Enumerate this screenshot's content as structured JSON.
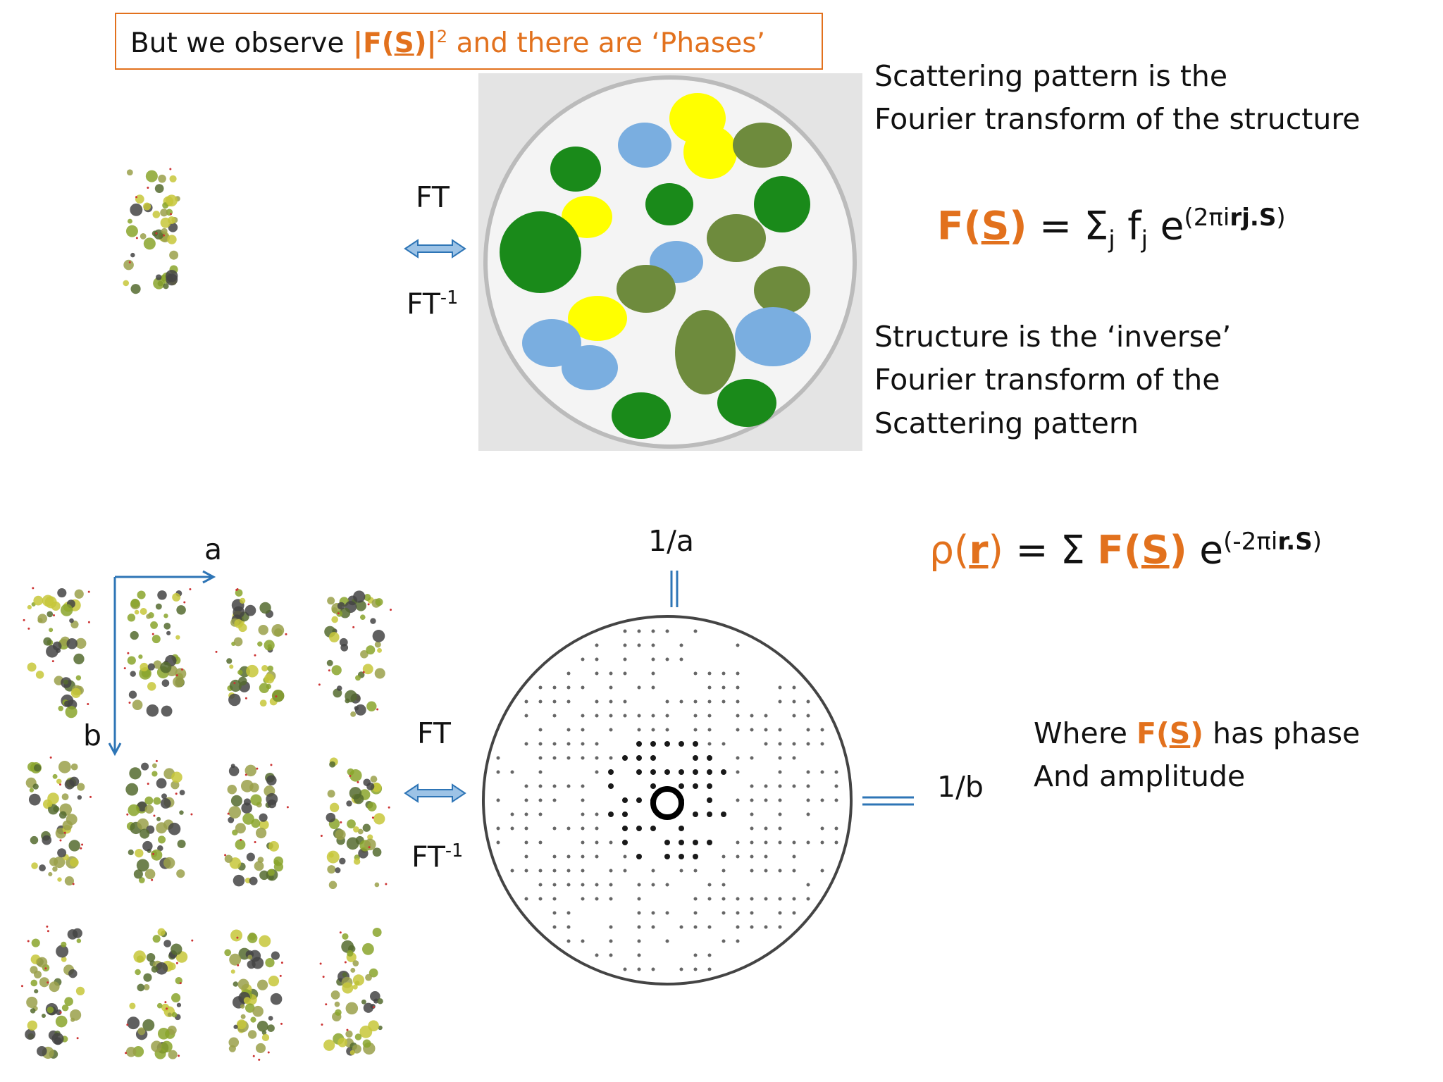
{
  "banner": {
    "lead": "But we observe",
    "f_open": "|F(",
    "f_s": "S",
    "f_close": ")|",
    "sup": "2",
    "tail": "and there are ‘Phases’"
  },
  "top": {
    "description": [
      "Scattering pattern is the",
      "Fourier transform of the structure"
    ],
    "ft": "FT",
    "ft_inv": "FT",
    "ft_inv_sup": "-1",
    "formula": {
      "f_open": "F(",
      "f_s": "S",
      "f_close": ")",
      "eq": "= Σ",
      "sub1": "j",
      "f": "f",
      "sub2": "j",
      "e": "e",
      "exp_open": "(2πi",
      "exp_bold": "rj.S",
      "exp_close": ")"
    },
    "inverse_description": [
      "Structure is the ‘inverse’",
      "Fourier transform of the",
      "Scattering pattern"
    ]
  },
  "bottom": {
    "axis_a": "a",
    "axis_b": "b",
    "recip_a": "1/a",
    "recip_b": "1/b",
    "ft": "FT",
    "ft_inv": "FT",
    "ft_inv_sup": "-1",
    "formula": {
      "rho_open": "ρ(",
      "rho_r": "r",
      "rho_close": ")",
      "eq": "= Σ",
      "f_open": "F(",
      "f_s": "S",
      "f_close": ")",
      "e": "e",
      "exp_open": "(-2πi",
      "exp_bold": "r.S",
      "exp_close": ")"
    },
    "note": {
      "lead": "Where",
      "f_open": "F(",
      "f_s": "S",
      "f_close": ")",
      "tail": "has phase",
      "line2": "And amplitude"
    }
  }
}
